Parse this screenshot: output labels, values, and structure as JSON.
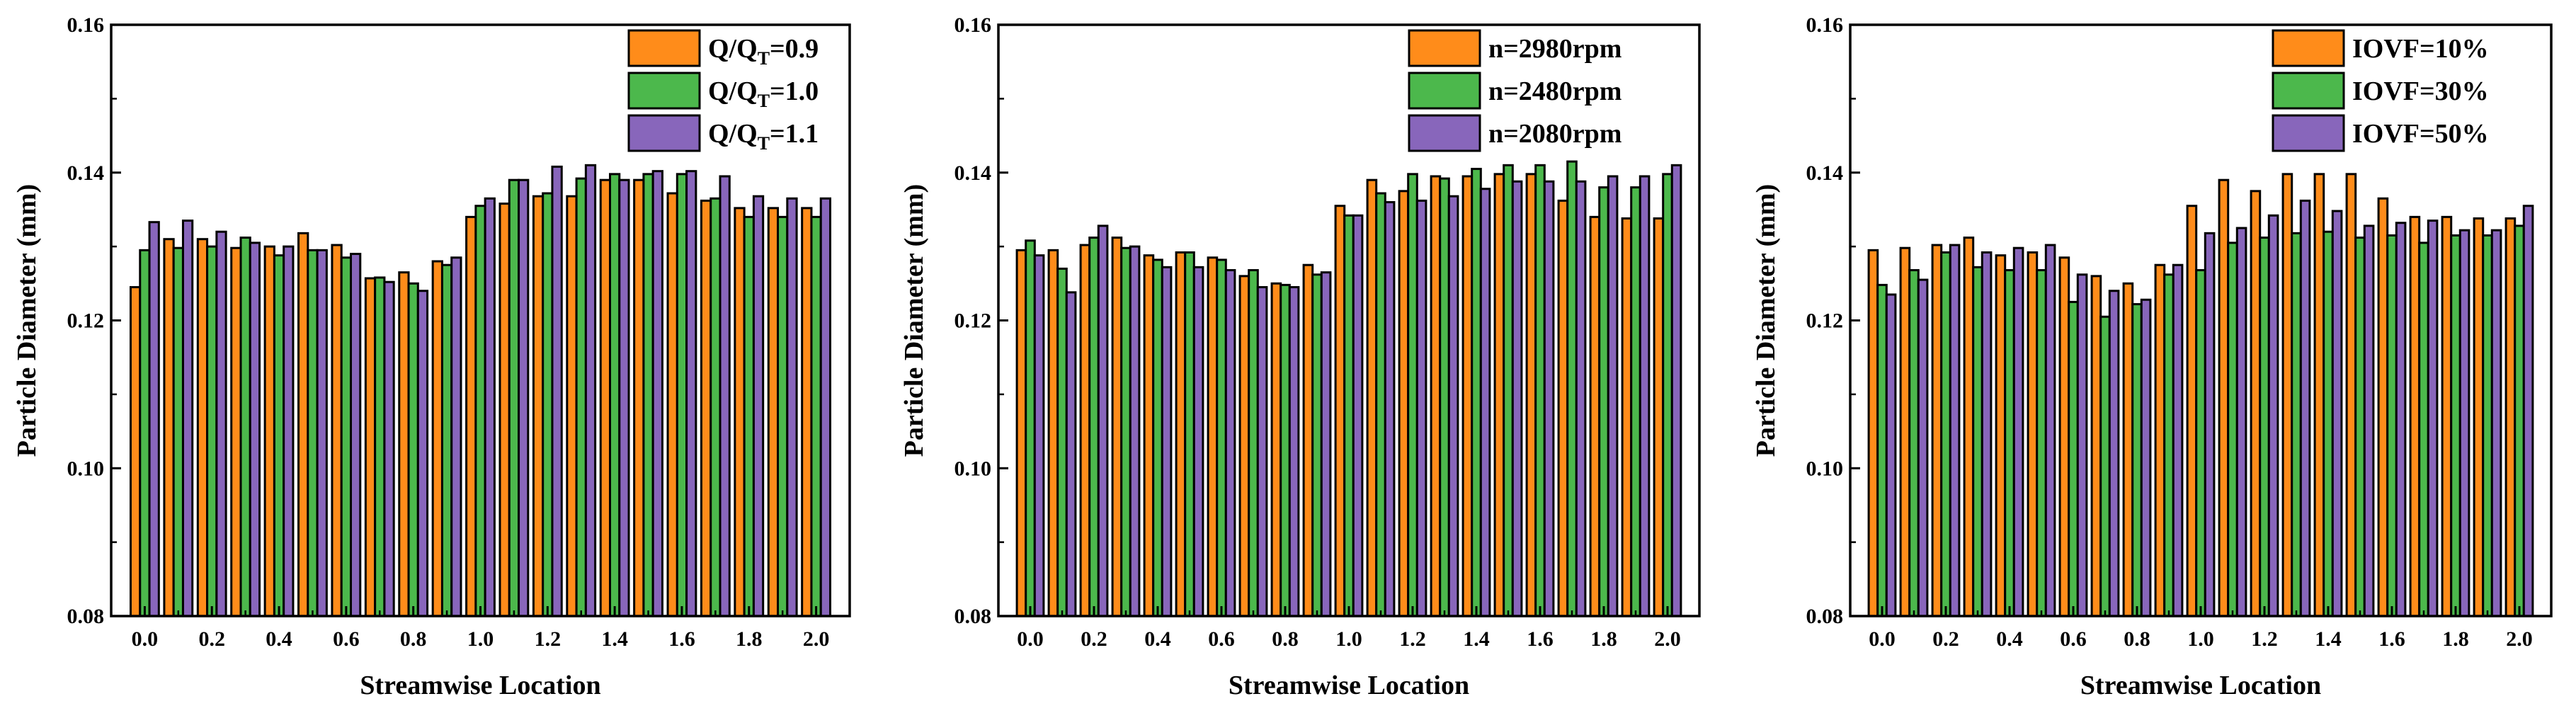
{
  "colors": {
    "orange": "#FF8C1A",
    "green": "#4CB84C",
    "purple": "#8866BB",
    "stroke": "#000000"
  },
  "chart_data": [
    {
      "type": "bar",
      "xlabel": "Streamwise Location",
      "ylabel": "Particle Diameter (mm)",
      "ylim": [
        0.08,
        0.16
      ],
      "yticks": [
        "0.08",
        "0.10",
        "0.12",
        "0.14",
        "0.16"
      ],
      "xticks": [
        "0.0",
        "0.2",
        "0.4",
        "0.6",
        "0.8",
        "1.0",
        "1.2",
        "1.4",
        "1.6",
        "1.8",
        "2.0"
      ],
      "x": [
        0.0,
        0.1,
        0.2,
        0.3,
        0.4,
        0.5,
        0.6,
        0.7,
        0.8,
        0.9,
        1.0,
        1.1,
        1.2,
        1.3,
        1.4,
        1.5,
        1.6,
        1.7,
        1.8,
        1.9,
        2.0
      ],
      "legend_position": "top-right",
      "legend": [
        {
          "main": "Q/Q",
          "sub": "T",
          "tail": "=0.9"
        },
        {
          "main": "Q/Q",
          "sub": "T",
          "tail": "=1.0"
        },
        {
          "main": "Q/Q",
          "sub": "T",
          "tail": "=1.1"
        }
      ],
      "series": [
        {
          "values": [
            0.1245,
            0.131,
            0.131,
            0.1298,
            0.13,
            0.1318,
            0.1302,
            0.1257,
            0.1265,
            0.128,
            0.134,
            0.1358,
            0.1368,
            0.1368,
            0.139,
            0.139,
            0.1372,
            0.1362,
            0.1352,
            0.1352,
            0.1352
          ]
        },
        {
          "values": [
            0.1295,
            0.1298,
            0.13,
            0.1312,
            0.1288,
            0.1295,
            0.1285,
            0.1258,
            0.125,
            0.1275,
            0.1355,
            0.139,
            0.1372,
            0.1392,
            0.1398,
            0.1398,
            0.1398,
            0.1365,
            0.134,
            0.134,
            0.134
          ]
        },
        {
          "values": [
            0.1333,
            0.1335,
            0.132,
            0.1305,
            0.13,
            0.1295,
            0.129,
            0.1252,
            0.124,
            0.1285,
            0.1365,
            0.139,
            0.1408,
            0.141,
            0.139,
            0.1402,
            0.1402,
            0.1395,
            0.1368,
            0.1365,
            0.1365
          ]
        }
      ]
    },
    {
      "type": "bar",
      "xlabel": "Streamwise Location",
      "ylabel": "Particle Diameter (mm)",
      "ylim": [
        0.08,
        0.16
      ],
      "yticks": [
        "0.08",
        "0.10",
        "0.12",
        "0.14",
        "0.16"
      ],
      "xticks": [
        "0.0",
        "0.2",
        "0.4",
        "0.6",
        "0.8",
        "1.0",
        "1.2",
        "1.4",
        "1.6",
        "1.8",
        "2.0"
      ],
      "x": [
        0.0,
        0.1,
        0.2,
        0.3,
        0.4,
        0.5,
        0.6,
        0.7,
        0.8,
        0.9,
        1.0,
        1.1,
        1.2,
        1.3,
        1.4,
        1.5,
        1.6,
        1.7,
        1.8,
        1.9,
        2.0
      ],
      "legend_position": "top-right",
      "legend": [
        {
          "main": "n=2980rpm",
          "sub": "",
          "tail": ""
        },
        {
          "main": "n=2480rpm",
          "sub": "",
          "tail": ""
        },
        {
          "main": "n=2080rpm",
          "sub": "",
          "tail": ""
        }
      ],
      "series": [
        {
          "values": [
            0.1295,
            0.1295,
            0.1302,
            0.1312,
            0.1288,
            0.1292,
            0.1285,
            0.126,
            0.125,
            0.1275,
            0.1355,
            0.139,
            0.1375,
            0.1395,
            0.1395,
            0.1398,
            0.1398,
            0.1362,
            0.134,
            0.1338,
            0.1338
          ]
        },
        {
          "values": [
            0.1308,
            0.127,
            0.1312,
            0.1298,
            0.1282,
            0.1292,
            0.1282,
            0.1268,
            0.1248,
            0.1262,
            0.1342,
            0.1372,
            0.1398,
            0.1392,
            0.1405,
            0.141,
            0.141,
            0.1415,
            0.138,
            0.138,
            0.1398
          ]
        },
        {
          "values": [
            0.1288,
            0.1238,
            0.1328,
            0.13,
            0.1272,
            0.1272,
            0.1268,
            0.1245,
            0.1245,
            0.1265,
            0.1342,
            0.136,
            0.1362,
            0.1368,
            0.1378,
            0.1388,
            0.1388,
            0.1388,
            0.1395,
            0.1395,
            0.141
          ]
        }
      ]
    },
    {
      "type": "bar",
      "xlabel": "Streamwise Location",
      "ylabel": "Particle Diameter (mm)",
      "ylim": [
        0.08,
        0.16
      ],
      "yticks": [
        "0.08",
        "0.10",
        "0.12",
        "0.14",
        "0.16"
      ],
      "xticks": [
        "0.0",
        "0.2",
        "0.4",
        "0.6",
        "0.8",
        "1.0",
        "1.2",
        "1.4",
        "1.6",
        "1.8",
        "2.0"
      ],
      "x": [
        0.0,
        0.1,
        0.2,
        0.3,
        0.4,
        0.5,
        0.6,
        0.7,
        0.8,
        0.9,
        1.0,
        1.1,
        1.2,
        1.3,
        1.4,
        1.5,
        1.6,
        1.7,
        1.8,
        1.9,
        2.0
      ],
      "legend_position": "top-right",
      "legend": [
        {
          "main": "IOVF=10%",
          "sub": "",
          "tail": ""
        },
        {
          "main": "IOVF=30%",
          "sub": "",
          "tail": ""
        },
        {
          "main": "IOVF=50%",
          "sub": "",
          "tail": ""
        }
      ],
      "series": [
        {
          "values": [
            0.1295,
            0.1298,
            0.1302,
            0.1312,
            0.1288,
            0.1292,
            0.1285,
            0.126,
            0.125,
            0.1275,
            0.1355,
            0.139,
            0.1375,
            0.1398,
            0.1398,
            0.1398,
            0.1365,
            0.134,
            0.134,
            0.1338,
            0.1338
          ]
        },
        {
          "values": [
            0.1248,
            0.1268,
            0.1292,
            0.1272,
            0.1268,
            0.1268,
            0.1225,
            0.1205,
            0.1222,
            0.1262,
            0.1268,
            0.1305,
            0.1312,
            0.1318,
            0.132,
            0.1312,
            0.1315,
            0.1305,
            0.1315,
            0.1315,
            0.1328
          ]
        },
        {
          "values": [
            0.1235,
            0.1255,
            0.1302,
            0.1292,
            0.1298,
            0.1302,
            0.1262,
            0.124,
            0.1228,
            0.1275,
            0.1318,
            0.1325,
            0.1342,
            0.1362,
            0.1348,
            0.1328,
            0.1332,
            0.1335,
            0.1322,
            0.1322,
            0.1355
          ]
        }
      ]
    }
  ]
}
